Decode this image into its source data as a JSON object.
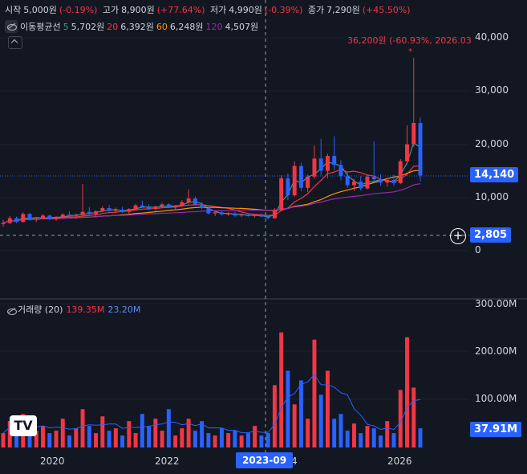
{
  "ohlc": {
    "open_label": "시작",
    "open_value": "5,000원",
    "open_change": "(-0.19%)",
    "high_label": "고가",
    "high_value": "8,900원",
    "high_change": "(+77.64%)",
    "low_label": "저가",
    "low_value": "4,990원",
    "low_change": "(-0.39%)",
    "close_label": "종가",
    "close_value": "7,290원",
    "close_change": "(+45.50%)"
  },
  "ma": {
    "label": "이동평균선",
    "items": [
      {
        "period": "5",
        "value": "5,702원",
        "color": "#26a69a"
      },
      {
        "period": "20",
        "value": "6,392원",
        "color": "#f23645"
      },
      {
        "period": "60",
        "value": "6,248원",
        "color": "#ff9800"
      },
      {
        "period": "120",
        "value": "4,507원",
        "color": "#9c27b0"
      }
    ]
  },
  "volume_legend": {
    "label": "거래량 (20)",
    "value1": "139.35M",
    "value2": "23.20M"
  },
  "annotation": "36,200원 (-60.93%, 2026.03",
  "price_axis": [
    "40,000",
    "30,000",
    "20,000",
    "10,000",
    "0"
  ],
  "volume_axis": [
    "300.00M",
    "200.00M",
    "100.00M"
  ],
  "current_price_tag": "14,140",
  "crosshair_price_tag": "2,805",
  "current_volume_tag": "37.91M",
  "x_axis": [
    "2020",
    "2022",
    "4",
    "2026"
  ],
  "crosshair_date": "2023-09",
  "colors": {
    "up": "#f23645",
    "down": "#2962ff",
    "bg": "#131722",
    "accent": "#2962ff"
  },
  "chart_data": {
    "type": "candlestick",
    "note_series": "approximate monthly candles",
    "candles": [
      [
        5000,
        5800,
        4500,
        5200
      ],
      [
        5200,
        6500,
        5000,
        6100
      ],
      [
        6100,
        6400,
        5200,
        5400
      ],
      [
        5400,
        7200,
        5300,
        6900
      ],
      [
        6900,
        7100,
        5600,
        5800
      ],
      [
        5800,
        6300,
        5400,
        6000
      ],
      [
        6000,
        6900,
        5900,
        6600
      ],
      [
        6600,
        6800,
        5700,
        5900
      ],
      [
        5900,
        6500,
        5600,
        6300
      ],
      [
        6300,
        7000,
        6100,
        6800
      ],
      [
        6800,
        7400,
        6300,
        6500
      ],
      [
        6500,
        7000,
        6000,
        6700
      ],
      [
        6700,
        12500,
        6500,
        7300
      ],
      [
        7300,
        8200,
        6600,
        6900
      ],
      [
        6900,
        7600,
        6500,
        7400
      ],
      [
        7400,
        8400,
        7200,
        8000
      ],
      [
        8000,
        8600,
        7200,
        7500
      ],
      [
        7500,
        8100,
        7000,
        7700
      ],
      [
        7700,
        8200,
        7100,
        7300
      ],
      [
        7300,
        8000,
        6900,
        7800
      ],
      [
        7800,
        8800,
        7600,
        8500
      ],
      [
        8500,
        9400,
        8100,
        8200
      ],
      [
        8200,
        8700,
        7600,
        7900
      ],
      [
        7900,
        8500,
        7500,
        8300
      ],
      [
        8300,
        9000,
        8000,
        8700
      ],
      [
        8700,
        8900,
        8000,
        8100
      ],
      [
        8100,
        8600,
        7800,
        8400
      ],
      [
        8400,
        9500,
        8200,
        9100
      ],
      [
        9100,
        11500,
        8700,
        9800
      ],
      [
        9800,
        10200,
        8500,
        8700
      ],
      [
        8700,
        9100,
        7800,
        8000
      ],
      [
        8000,
        8300,
        6800,
        7000
      ],
      [
        7000,
        7400,
        6500,
        7200
      ],
      [
        7200,
        7500,
        6600,
        6800
      ],
      [
        6800,
        7200,
        6500,
        7000
      ],
      [
        7000,
        7300,
        6400,
        6600
      ],
      [
        6600,
        7000,
        6300,
        6800
      ],
      [
        6800,
        7100,
        6400,
        6500
      ],
      [
        6500,
        6900,
        6200,
        6700
      ],
      [
        6700,
        7000,
        6300,
        6400
      ],
      [
        6400,
        6700,
        5900,
        6100
      ],
      [
        6100,
        8000,
        6000,
        7600
      ],
      [
        7600,
        14200,
        7400,
        13600
      ],
      [
        13600,
        14500,
        9500,
        10400
      ],
      [
        10400,
        16800,
        10100,
        15900
      ],
      [
        15900,
        16500,
        11200,
        11800
      ],
      [
        11800,
        14300,
        11000,
        13900
      ],
      [
        13900,
        19800,
        13500,
        17300
      ],
      [
        17300,
        21000,
        14200,
        15000
      ],
      [
        15000,
        18200,
        13600,
        17800
      ],
      [
        17800,
        21500,
        15100,
        16100
      ],
      [
        16100,
        17000,
        13200,
        14000
      ],
      [
        14000,
        14800,
        11800,
        12300
      ],
      [
        12300,
        13500,
        11200,
        13000
      ],
      [
        13000,
        14000,
        11300,
        11700
      ],
      [
        11700,
        14200,
        11500,
        13900
      ],
      [
        13900,
        20500,
        12800,
        13400
      ],
      [
        13400,
        14400,
        12200,
        12800
      ],
      [
        12800,
        13600,
        12000,
        13300
      ],
      [
        13300,
        14300,
        12200,
        12700
      ],
      [
        12700,
        17200,
        12500,
        16800
      ],
      [
        16800,
        23500,
        16200,
        20000
      ],
      [
        20000,
        36200,
        19500,
        24000
      ],
      [
        24000,
        25000,
        13000,
        14140
      ]
    ],
    "volume": [
      30,
      55,
      25,
      70,
      40,
      35,
      45,
      30,
      35,
      60,
      25,
      40,
      80,
      45,
      30,
      65,
      35,
      40,
      25,
      55,
      30,
      70,
      45,
      60,
      35,
      80,
      25,
      40,
      60,
      35,
      55,
      30,
      25,
      40,
      30,
      35,
      25,
      30,
      45,
      25,
      30,
      130,
      240,
      160,
      90,
      140,
      60,
      225,
      110,
      160,
      60,
      70,
      35,
      50,
      30,
      45,
      40,
      25,
      55,
      30,
      120,
      230,
      125,
      40
    ]
  }
}
